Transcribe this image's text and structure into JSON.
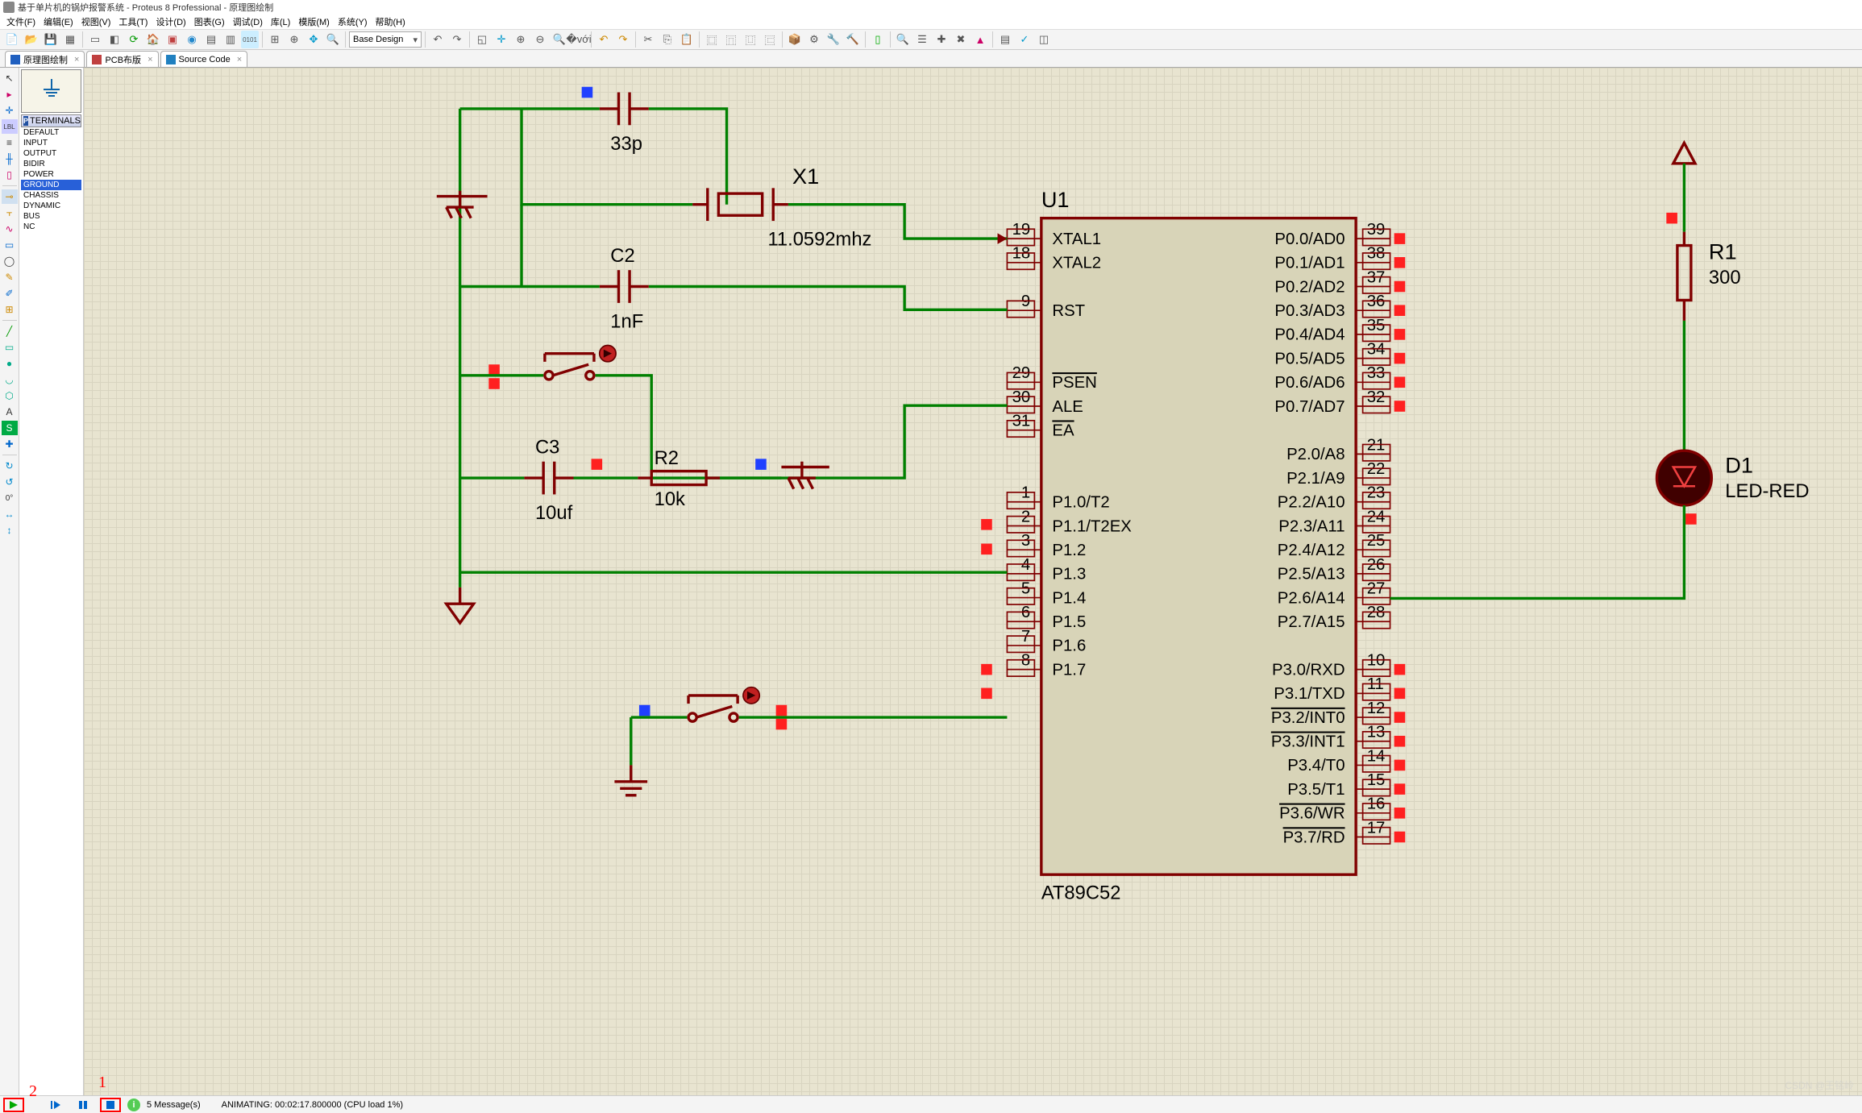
{
  "title": "基于单片机的锅炉报警系统 - Proteus 8 Professional - 原理图绘制",
  "menu": [
    "文件(F)",
    "编辑(E)",
    "视图(V)",
    "工具(T)",
    "设计(D)",
    "图表(G)",
    "调试(D)",
    "库(L)",
    "模版(M)",
    "系统(Y)",
    "帮助(H)"
  ],
  "toolbar": {
    "combo": "Base Design"
  },
  "tabs": [
    {
      "label": "原理图绘制",
      "icon": "#2060c0",
      "close": true
    },
    {
      "label": "PCB布版",
      "icon": "#c04040",
      "close": true
    },
    {
      "label": "Source Code",
      "icon": "#2080c0",
      "close": true
    }
  ],
  "terminals": {
    "header": "TERMINALS",
    "items": [
      "DEFAULT",
      "INPUT",
      "OUTPUT",
      "BIDIR",
      "POWER",
      "GROUND",
      "CHASSIS",
      "DYNAMIC",
      "BUS",
      "NC"
    ],
    "selected": "GROUND"
  },
  "rot_label": "0°",
  "schematic": {
    "chip": {
      "ref": "U1",
      "name": "AT89C52",
      "left": [
        {
          "n": "19",
          "lbl": "XTAL1"
        },
        {
          "n": "18",
          "lbl": "XTAL2"
        },
        {
          "n": "",
          "lbl": ""
        },
        {
          "n": "9",
          "lbl": "RST"
        },
        {
          "n": "",
          "lbl": ""
        },
        {
          "n": "",
          "lbl": ""
        },
        {
          "n": "29",
          "lbl": "PSEN",
          "ov": true
        },
        {
          "n": "30",
          "lbl": "ALE"
        },
        {
          "n": "31",
          "lbl": "EA",
          "ov": true
        },
        {
          "n": "",
          "lbl": ""
        },
        {
          "n": "",
          "lbl": ""
        },
        {
          "n": "1",
          "lbl": "P1.0/T2"
        },
        {
          "n": "2",
          "lbl": "P1.1/T2EX"
        },
        {
          "n": "3",
          "lbl": "P1.2"
        },
        {
          "n": "4",
          "lbl": "P1.3"
        },
        {
          "n": "5",
          "lbl": "P1.4"
        },
        {
          "n": "6",
          "lbl": "P1.5"
        },
        {
          "n": "7",
          "lbl": "P1.6"
        },
        {
          "n": "8",
          "lbl": "P1.7"
        }
      ],
      "right": [
        {
          "n": "39",
          "lbl": "P0.0/AD0"
        },
        {
          "n": "38",
          "lbl": "P0.1/AD1"
        },
        {
          "n": "37",
          "lbl": "P0.2/AD2"
        },
        {
          "n": "36",
          "lbl": "P0.3/AD3"
        },
        {
          "n": "35",
          "lbl": "P0.4/AD4"
        },
        {
          "n": "34",
          "lbl": "P0.5/AD5"
        },
        {
          "n": "33",
          "lbl": "P0.6/AD6"
        },
        {
          "n": "32",
          "lbl": "P0.7/AD7"
        },
        {
          "n": "",
          "lbl": ""
        },
        {
          "n": "21",
          "lbl": "P2.0/A8"
        },
        {
          "n": "22",
          "lbl": "P2.1/A9"
        },
        {
          "n": "23",
          "lbl": "P2.2/A10"
        },
        {
          "n": "24",
          "lbl": "P2.3/A11"
        },
        {
          "n": "25",
          "lbl": "P2.4/A12"
        },
        {
          "n": "26",
          "lbl": "P2.5/A13"
        },
        {
          "n": "27",
          "lbl": "P2.6/A14"
        },
        {
          "n": "28",
          "lbl": "P2.7/A15"
        },
        {
          "n": "",
          "lbl": ""
        },
        {
          "n": "10",
          "lbl": "P3.0/RXD"
        },
        {
          "n": "11",
          "lbl": "P3.1/TXD"
        },
        {
          "n": "12",
          "lbl": "P3.2/INT0",
          "ov": true
        },
        {
          "n": "13",
          "lbl": "P3.3/INT1",
          "ov": true
        },
        {
          "n": "14",
          "lbl": "P3.4/T0"
        },
        {
          "n": "15",
          "lbl": "P3.5/T1"
        },
        {
          "n": "16",
          "lbl": "P3.6/WR",
          "ov": true
        },
        {
          "n": "17",
          "lbl": "P3.7/RD",
          "ov": true
        }
      ]
    },
    "parts": {
      "C1": {
        "val": "33p"
      },
      "X1": {
        "val": "11.0592mhz"
      },
      "C2": {
        "val": "1nF"
      },
      "C3": {
        "val": "10uf"
      },
      "R2": {
        "val": "10k"
      },
      "R1": {
        "val": "300",
        "ref": "R1"
      },
      "D1": {
        "ref": "D1",
        "name": "LED-RED"
      }
    }
  },
  "annot": {
    "mark1": "1",
    "mark2": "2"
  },
  "status": {
    "msg": "5 Message(s)",
    "anim": "ANIMATING: 00:02:17.800000 (CPU load 1%)"
  },
  "watermark": "CSDN @王铭岭",
  "colors": {
    "wire": "#008000",
    "comp": "#800000",
    "chip_fill": "#d8d4b8",
    "canvas": "#e8e4d0",
    "probe_hi": "#ff2020",
    "probe_lo": "#2040ff",
    "sel": "#2860d8"
  }
}
